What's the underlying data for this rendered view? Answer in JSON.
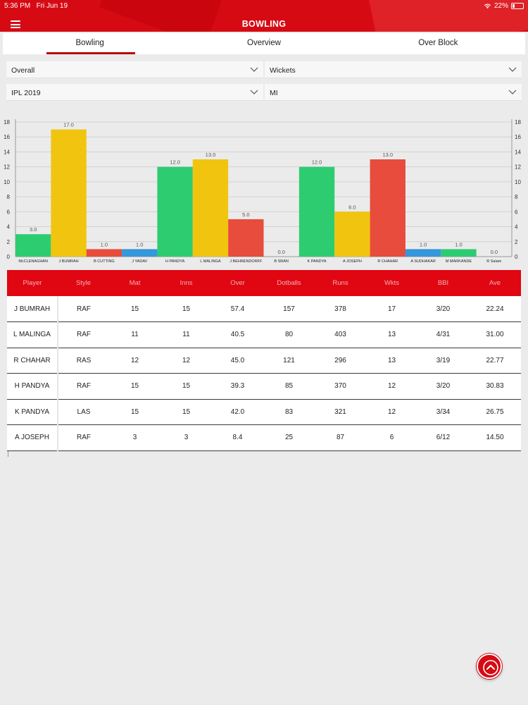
{
  "status_bar": {
    "time": "5:36 PM",
    "date": "Fri Jun 19",
    "battery": "22%"
  },
  "header": {
    "title": "BOWLING"
  },
  "tabs": [
    {
      "label": "Bowling",
      "active": true
    },
    {
      "label": "Overview",
      "active": false
    },
    {
      "label": "Over Block",
      "active": false
    }
  ],
  "filters": {
    "scope": "Overall",
    "metric": "Wickets",
    "season": "IPL 2019",
    "team": "MI"
  },
  "colors": {
    "brand_red": "#d60a13",
    "green": "#2ecc71",
    "yellow": "#f1c40f",
    "red": "#e74c3c",
    "blue": "#3498db"
  },
  "chart_data": {
    "type": "bar",
    "categories": [
      "McCLENAGHAN",
      "J BUMRAH",
      "B CUTTING",
      "J YADAV",
      "H PANDYA",
      "L MALINGA",
      "J BEHRENDORFF",
      "B SRAN",
      "K PANDYA",
      "A JOSEPH",
      "R CHAHAR",
      "A SUDHAKAR",
      "M MARKANDE",
      "R Salam"
    ],
    "values": [
      3.0,
      17.0,
      1.0,
      1.0,
      12.0,
      13.0,
      5.0,
      0.0,
      12.0,
      6.0,
      13.0,
      1.0,
      1.0,
      0.0
    ],
    "value_labels": [
      "3.0",
      "17.0",
      "1.0",
      "1.0",
      "12.0",
      "13.0",
      "5.0",
      "0.0",
      "12.0",
      "6.0",
      "13.0",
      "1.0",
      "1.0",
      "0.0"
    ],
    "bar_colors": [
      "green",
      "yellow",
      "red",
      "blue",
      "green",
      "yellow",
      "red",
      "red",
      "green",
      "yellow",
      "red",
      "blue",
      "green",
      "blue"
    ],
    "yticks": [
      "0",
      "2",
      "4",
      "6",
      "8",
      "10",
      "12",
      "14",
      "16",
      "18"
    ],
    "ylim": [
      0,
      18
    ],
    "grid": true,
    "axes": "left-and-right"
  },
  "table": {
    "headers": [
      "Player",
      "Style",
      "Mat",
      "Inns",
      "Over",
      "Dotballs",
      "Runs",
      "Wkts",
      "BBI",
      "Ave"
    ],
    "rows": [
      [
        "J BUMRAH",
        "RAF",
        "15",
        "15",
        "57.4",
        "157",
        "378",
        "17",
        "3/20",
        "22.24"
      ],
      [
        "L MALINGA",
        "RAF",
        "11",
        "11",
        "40.5",
        "80",
        "403",
        "13",
        "4/31",
        "31.00"
      ],
      [
        "R CHAHAR",
        "RAS",
        "12",
        "12",
        "45.0",
        "121",
        "296",
        "13",
        "3/19",
        "22.77"
      ],
      [
        "H PANDYA",
        "RAF",
        "15",
        "15",
        "39.3",
        "85",
        "370",
        "12",
        "3/20",
        "30.83"
      ],
      [
        "K PANDYA",
        "LAS",
        "15",
        "15",
        "42.0",
        "83",
        "321",
        "12",
        "3/34",
        "26.75"
      ],
      [
        "A JOSEPH",
        "RAF",
        "3",
        "3",
        "8.4",
        "25",
        "87",
        "6",
        "6/12",
        "14.50"
      ]
    ]
  }
}
